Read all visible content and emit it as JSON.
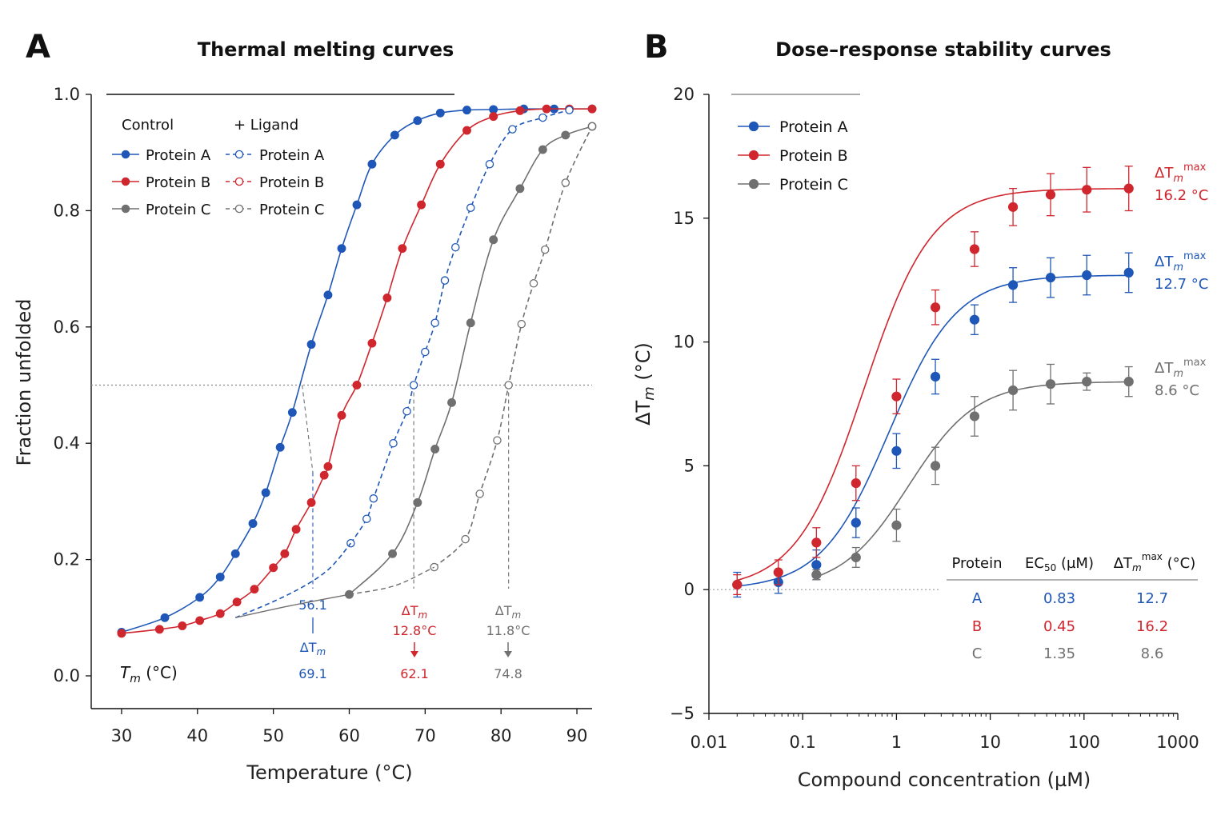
{
  "colors": {
    "a": "#1f57b8",
    "b": "#d0262e",
    "c": "#707070",
    "grid": "#888888"
  },
  "panel_a": {
    "letter": "A",
    "title": "Thermal melting curves",
    "xlabel": "Temperature (°C)",
    "ylabel": "Fraction unfolded",
    "legend_control_heading": "Control",
    "legend_ligand_heading": "+ Ligand",
    "tm_label": "T",
    "tm_label_sub": "m",
    "tm_label_unit": " (°C)",
    "annotations": {
      "a_control_tm": "56.1",
      "a_delta": "ΔT",
      "a_delta_sub": "m",
      "a_ligand_tm": "69.1",
      "b_delta": "ΔT",
      "b_delta_sub": "m",
      "b_delta_value": "12.8°C",
      "b_control_tm": "62.1",
      "c_delta": "ΔT",
      "c_delta_sub": "m",
      "c_delta_value": "11.8°C",
      "c_control_tm": "74.8"
    }
  },
  "panel_b": {
    "letter": "B",
    "title": "Dose–response stability curves",
    "xlabel": "Compound concentration (µM)",
    "ylabel": "ΔT",
    "ylabel_sub": "m",
    "ylabel_unit": " (°C)",
    "max_labels": [
      {
        "delta": "ΔT",
        "sub": "m",
        "sup": "max",
        "value": "16.2 °C"
      },
      {
        "delta": "ΔT",
        "sub": "m",
        "sup": "max",
        "value": "12.7 °C"
      },
      {
        "delta": "ΔT",
        "sub": "m",
        "sup": "max",
        "value": "8.6 °C"
      }
    ],
    "table": {
      "headers": [
        "Protein",
        "EC",
        "50",
        " (µM)",
        "ΔT",
        "m",
        "max",
        " (°C)"
      ],
      "rows": [
        [
          "A",
          "0.83",
          "12.7"
        ],
        [
          "B",
          "0.45",
          "16.2"
        ],
        [
          "C",
          "1.35",
          "8.6"
        ]
      ]
    }
  },
  "chart_data": [
    {
      "type": "line",
      "title": "Thermal melting curves",
      "xlabel": "Temperature (°C)",
      "ylabel": "Fraction unfolded",
      "xlim": [
        26,
        92
      ],
      "ylim": [
        0.0,
        1.0
      ],
      "xticks": [
        30,
        40,
        50,
        60,
        70,
        80,
        90
      ],
      "yticks": [
        0.0,
        0.2,
        0.4,
        0.6,
        0.8,
        1.0
      ],
      "reference_line_y": 0.5,
      "legend": "top-left",
      "series": [
        {
          "name": "Protein A",
          "group": "Control",
          "color": "#1f57b8",
          "style": "solid",
          "marker": "filled",
          "x": [
            30,
            35.7,
            40.3,
            43,
            45,
            47.3,
            49,
            50.9,
            52.5,
            55,
            57.2,
            59,
            61,
            63,
            66,
            69,
            72,
            75.5,
            79,
            83,
            87,
            92
          ],
          "y": [
            0.075,
            0.1,
            0.135,
            0.17,
            0.21,
            0.262,
            0.315,
            0.393,
            0.453,
            0.57,
            0.655,
            0.735,
            0.81,
            0.88,
            0.93,
            0.955,
            0.968,
            0.973,
            0.974,
            0.975,
            0.975,
            0.975
          ]
        },
        {
          "name": "Protein B",
          "group": "Control",
          "color": "#d0262e",
          "style": "solid",
          "marker": "filled",
          "x": [
            30,
            35,
            38,
            40.3,
            43,
            45.2,
            47.5,
            50,
            51.5,
            53,
            55,
            56.7,
            57.2,
            59,
            61,
            63,
            65,
            67,
            69.5,
            72,
            75.5,
            79,
            82.5,
            86,
            89,
            92
          ],
          "y": [
            0.073,
            0.08,
            0.086,
            0.095,
            0.107,
            0.127,
            0.149,
            0.186,
            0.21,
            0.252,
            0.298,
            0.345,
            0.36,
            0.448,
            0.5,
            0.572,
            0.65,
            0.735,
            0.81,
            0.88,
            0.938,
            0.962,
            0.972,
            0.975,
            0.975,
            0.975
          ]
        },
        {
          "name": "Protein C",
          "group": "Control",
          "color": "#707070",
          "style": "solid",
          "marker": "filled",
          "x": [
            60,
            65.7,
            69,
            71.3,
            73.5,
            76,
            79,
            82.5,
            85.5,
            88.5,
            92
          ],
          "y": [
            0.14,
            0.21,
            0.298,
            0.39,
            0.47,
            0.607,
            0.75,
            0.838,
            0.905,
            0.93,
            0.945
          ]
        },
        {
          "name": "Protein A",
          "group": "+ Ligand",
          "color": "#1f57b8",
          "style": "dashed",
          "marker": "open",
          "x": [
            60.2,
            62.3,
            63.2,
            65.8,
            67.6,
            68.5,
            70,
            71.3,
            72.6,
            74,
            76,
            78.5,
            81.5,
            85.5,
            89
          ],
          "y": [
            0.228,
            0.27,
            0.305,
            0.4,
            0.455,
            0.5,
            0.557,
            0.607,
            0.68,
            0.737,
            0.805,
            0.88,
            0.94,
            0.96,
            0.973
          ]
        },
        {
          "name": "Protein B",
          "group": "+ Ligand",
          "color": "#d0262e",
          "style": "dashed",
          "marker": "open",
          "x": [],
          "y": []
        },
        {
          "name": "Protein C",
          "group": "+ Ligand",
          "color": "#707070",
          "style": "dashed",
          "marker": "open",
          "x": [
            71.2,
            75.3,
            77.2,
            79.5,
            81,
            82.7,
            84.3,
            85.8,
            88.5,
            92
          ],
          "y": [
            0.187,
            0.235,
            0.313,
            0.405,
            0.5,
            0.605,
            0.675,
            0.733,
            0.848,
            0.945
          ]
        }
      ]
    },
    {
      "type": "line",
      "title": "Dose–response stability curves",
      "xlabel": "Compound concentration (µM)",
      "ylabel": "ΔTm (°C)",
      "xscale": "log",
      "xlim": [
        0.01,
        1000
      ],
      "ylim": [
        -5,
        20
      ],
      "xticks": [
        0.01,
        0.1,
        1,
        10,
        100,
        1000
      ],
      "yticks": [
        -5,
        0,
        5,
        10,
        15,
        20
      ],
      "reference_line_y": 0,
      "legend": "top-left",
      "series": [
        {
          "name": "Protein A",
          "color": "#1f57b8",
          "x": [
            0.02,
            0.055,
            0.14,
            0.37,
            1.0,
            2.6,
            6.8,
            17.5,
            44,
            107,
            300
          ],
          "y": [
            0.2,
            0.3,
            1.0,
            2.7,
            5.6,
            8.6,
            10.9,
            12.3,
            12.6,
            12.7,
            12.8
          ],
          "err": [
            0.5,
            0.45,
            0.6,
            0.6,
            0.7,
            0.7,
            0.6,
            0.7,
            0.8,
            0.8,
            0.8
          ]
        },
        {
          "name": "Protein B",
          "color": "#d0262e",
          "x": [
            0.02,
            0.055,
            0.14,
            0.37,
            1.0,
            2.6,
            6.8,
            17.5,
            44,
            107,
            300
          ],
          "y": [
            0.2,
            0.7,
            1.9,
            4.3,
            7.8,
            11.4,
            13.75,
            15.45,
            15.95,
            16.15,
            16.2
          ],
          "err": [
            0.4,
            0.5,
            0.6,
            0.7,
            0.7,
            0.7,
            0.7,
            0.75,
            0.85,
            0.9,
            0.9
          ]
        },
        {
          "name": "Protein C",
          "color": "#707070",
          "x": [
            0.14,
            0.37,
            1.0,
            2.6,
            6.8,
            17.5,
            44,
            107,
            300
          ],
          "y": [
            0.6,
            1.3,
            2.6,
            5.0,
            7.0,
            8.05,
            8.3,
            8.4,
            8.4
          ],
          "err": [
            0.2,
            0.4,
            0.65,
            0.75,
            0.8,
            0.8,
            0.8,
            0.35,
            0.6
          ]
        }
      ]
    }
  ]
}
